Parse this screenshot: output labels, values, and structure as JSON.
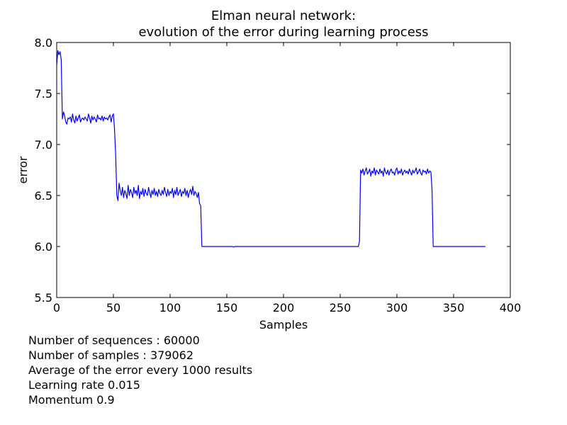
{
  "chart_data": {
    "type": "line",
    "title": "Elman neural network:",
    "subtitle": "evolution of the error during learning process",
    "xlabel": "Samples",
    "ylabel": "error",
    "xlim": [
      0,
      400
    ],
    "ylim": [
      5.5,
      8.0
    ],
    "xticks": [
      "0",
      "50",
      "100",
      "150",
      "200",
      "250",
      "300",
      "350",
      "400"
    ],
    "yticks": [
      "5.5",
      "6.0",
      "6.5",
      "7.0",
      "7.5",
      "8.0"
    ],
    "grid": false,
    "line_color": "#0000ff",
    "series": [
      {
        "segments": [
          {
            "range": [
              0,
              4
            ],
            "values": [
              7.78,
              7.92,
              7.88,
              7.91,
              7.83
            ]
          },
          {
            "range": [
              5,
              50
            ],
            "values": [
              7.25,
              7.32,
              7.28,
              7.22,
              7.2,
              7.26,
              7.25,
              7.27,
              7.22,
              7.3,
              7.24,
              7.21,
              7.28,
              7.23,
              7.26,
              7.29,
              7.22,
              7.25,
              7.26,
              7.24,
              7.27,
              7.25,
              7.23,
              7.3,
              7.26,
              7.21,
              7.28,
              7.24,
              7.27,
              7.25,
              7.22,
              7.29,
              7.25,
              7.26,
              7.24,
              7.28,
              7.23,
              7.27,
              7.25,
              7.26,
              7.24,
              7.27,
              7.29,
              7.22,
              7.28,
              7.3
            ]
          },
          {
            "range": [
              51,
              54
            ],
            "values": [
              7.15,
              6.9,
              6.5,
              6.45
            ]
          },
          {
            "range": [
              55,
              125
            ],
            "values": [
              6.62,
              6.55,
              6.5,
              6.58,
              6.48,
              6.55,
              6.52,
              6.47,
              6.6,
              6.5,
              6.56,
              6.53,
              6.48,
              6.58,
              6.52,
              6.55,
              6.5,
              6.6,
              6.47,
              6.54,
              6.51,
              6.57,
              6.49,
              6.56,
              6.52,
              6.5,
              6.58,
              6.53,
              6.48,
              6.55,
              6.51,
              6.57,
              6.5,
              6.54,
              6.49,
              6.56,
              6.52,
              6.5,
              6.55,
              6.51,
              6.58,
              6.53,
              6.49,
              6.56,
              6.5,
              6.54,
              6.52,
              6.57,
              6.48,
              6.55,
              6.51,
              6.58,
              6.5,
              6.53,
              6.56,
              6.49,
              6.54,
              6.52,
              6.57,
              6.5,
              6.55,
              6.48,
              6.53,
              6.56,
              6.51,
              6.59,
              6.5,
              6.54,
              6.52,
              6.48,
              6.53
            ]
          },
          {
            "range": [
              126,
              128
            ],
            "values": [
              6.42,
              6.4,
              6.0
            ]
          },
          {
            "points": [
              [
                128,
                6.0
              ],
              [
                155,
                6.0
              ],
              [
                156,
                5.995
              ],
              [
                157,
                6.0
              ],
              [
                266,
                6.0
              ],
              [
                267,
                6.05
              ],
              [
                268,
                6.75
              ]
            ]
          },
          {
            "range": [
              269,
              330
            ],
            "values": [
              6.72,
              6.76,
              6.7,
              6.74,
              6.77,
              6.71,
              6.73,
              6.76,
              6.69,
              6.74,
              6.72,
              6.77,
              6.7,
              6.75,
              6.73,
              6.71,
              6.76,
              6.72,
              6.74,
              6.69,
              6.77,
              6.73,
              6.71,
              6.75,
              6.7,
              6.74,
              6.76,
              6.72,
              6.73,
              6.7,
              6.75,
              6.77,
              6.71,
              6.74,
              6.72,
              6.76,
              6.7,
              6.73,
              6.75,
              6.72,
              6.74,
              6.71,
              6.76,
              6.73,
              6.7,
              6.75,
              6.72,
              6.74,
              6.77,
              6.71,
              6.73,
              6.76,
              6.72,
              6.7,
              6.75,
              6.73,
              6.74,
              6.71,
              6.76,
              6.72,
              6.74,
              6.73
            ]
          },
          {
            "points": [
              [
                331,
                6.55
              ],
              [
                332,
                6.0
              ],
              [
                378,
                6.0
              ]
            ]
          }
        ]
      }
    ]
  },
  "notes": [
    "Number of sequences : 60000",
    "Number of samples : 379062",
    "Average of the error every 1000 results",
    "Learning rate 0.015",
    "Momentum 0.9"
  ]
}
